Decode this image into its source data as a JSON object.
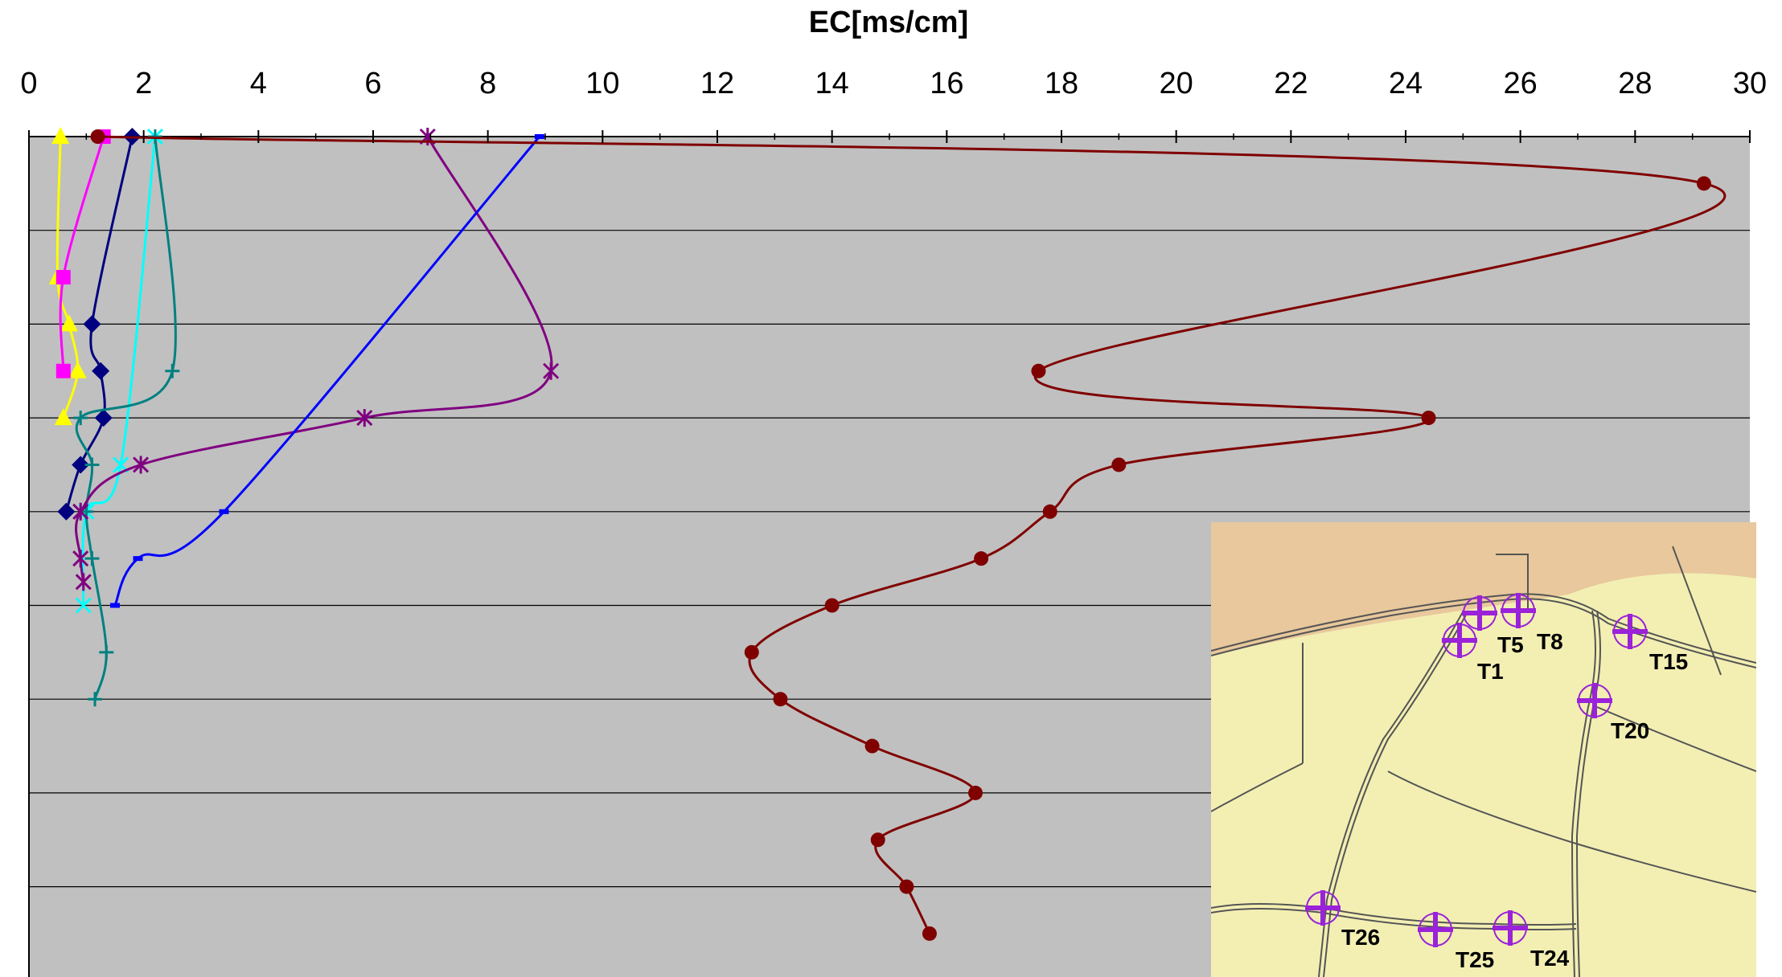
{
  "chart_data": {
    "type": "line",
    "title": "",
    "xlabel": "EC[ms/cm]",
    "ylabel": "",
    "xlim": [
      0,
      30
    ],
    "x_ticks": [
      "0",
      "2",
      "4",
      "6",
      "8",
      "10",
      "12",
      "14",
      "16",
      "18",
      "20",
      "22",
      "24",
      "26",
      "28",
      "30"
    ],
    "ylim": [
      0,
      9
    ],
    "grid": true,
    "colors": {
      "plot_bg": "#c0c0c0",
      "grid": "#000000"
    },
    "series": [
      {
        "color": "#ffff00",
        "marker": "triangle",
        "points": [
          [
            0.55,
            0
          ],
          [
            0.5,
            1.5
          ],
          [
            0.7,
            2
          ],
          [
            0.85,
            2.5
          ],
          [
            0.6,
            3
          ]
        ]
      },
      {
        "color": "#ff00ff",
        "marker": "square",
        "points": [
          [
            1.3,
            0
          ],
          [
            0.6,
            1.5
          ],
          [
            0.6,
            2.5
          ]
        ]
      },
      {
        "color": "#000080",
        "marker": "diamond",
        "points": [
          [
            1.8,
            0
          ],
          [
            1.1,
            2
          ],
          [
            1.25,
            2.5
          ],
          [
            1.3,
            3
          ],
          [
            0.9,
            3.5
          ],
          [
            0.65,
            4
          ]
        ]
      },
      {
        "color": "#00ffff",
        "marker": "x",
        "points": [
          [
            2.2,
            0
          ],
          [
            1.6,
            3.5
          ],
          [
            1.0,
            4
          ],
          [
            0.95,
            5
          ]
        ]
      },
      {
        "color": "#008080",
        "marker": "plus",
        "points": [
          [
            2.2,
            0
          ],
          [
            2.5,
            2.5
          ],
          [
            0.9,
            3
          ],
          [
            1.1,
            3.5
          ],
          [
            1.0,
            4
          ],
          [
            1.1,
            4.5
          ],
          [
            1.35,
            5.5
          ],
          [
            1.15,
            6
          ]
        ]
      },
      {
        "color": "#800080",
        "marker": "asterisk",
        "points": [
          [
            6.95,
            0
          ],
          [
            9.1,
            2.5
          ],
          [
            5.85,
            3
          ],
          [
            1.95,
            3.5
          ],
          [
            0.9,
            4
          ],
          [
            0.9,
            4.5
          ],
          [
            0.95,
            4.75
          ]
        ]
      },
      {
        "color": "#0000ff",
        "marker": "dash",
        "points": [
          [
            8.9,
            0
          ],
          [
            3.4,
            4
          ],
          [
            1.9,
            4.5
          ],
          [
            1.5,
            5
          ]
        ]
      },
      {
        "color": "#800000",
        "marker": "circle",
        "points": [
          [
            1.2,
            0
          ],
          [
            29.2,
            0.5
          ],
          [
            17.6,
            2.5
          ],
          [
            24.4,
            3
          ],
          [
            19.0,
            3.5
          ],
          [
            17.8,
            4
          ],
          [
            16.6,
            4.5
          ],
          [
            14.0,
            5
          ],
          [
            12.6,
            5.5
          ],
          [
            13.1,
            6
          ],
          [
            14.7,
            6.5
          ],
          [
            16.5,
            7
          ],
          [
            14.8,
            7.5
          ],
          [
            15.3,
            8
          ],
          [
            15.7,
            8.5
          ]
        ]
      }
    ]
  },
  "inset_map": {
    "colors": {
      "land": "#f3efb3",
      "sand": "#e7c79a",
      "marker": "#9a22d8"
    },
    "labels": [
      "T1",
      "T5",
      "T8",
      "T15",
      "T20",
      "T24",
      "T25",
      "T26"
    ]
  }
}
